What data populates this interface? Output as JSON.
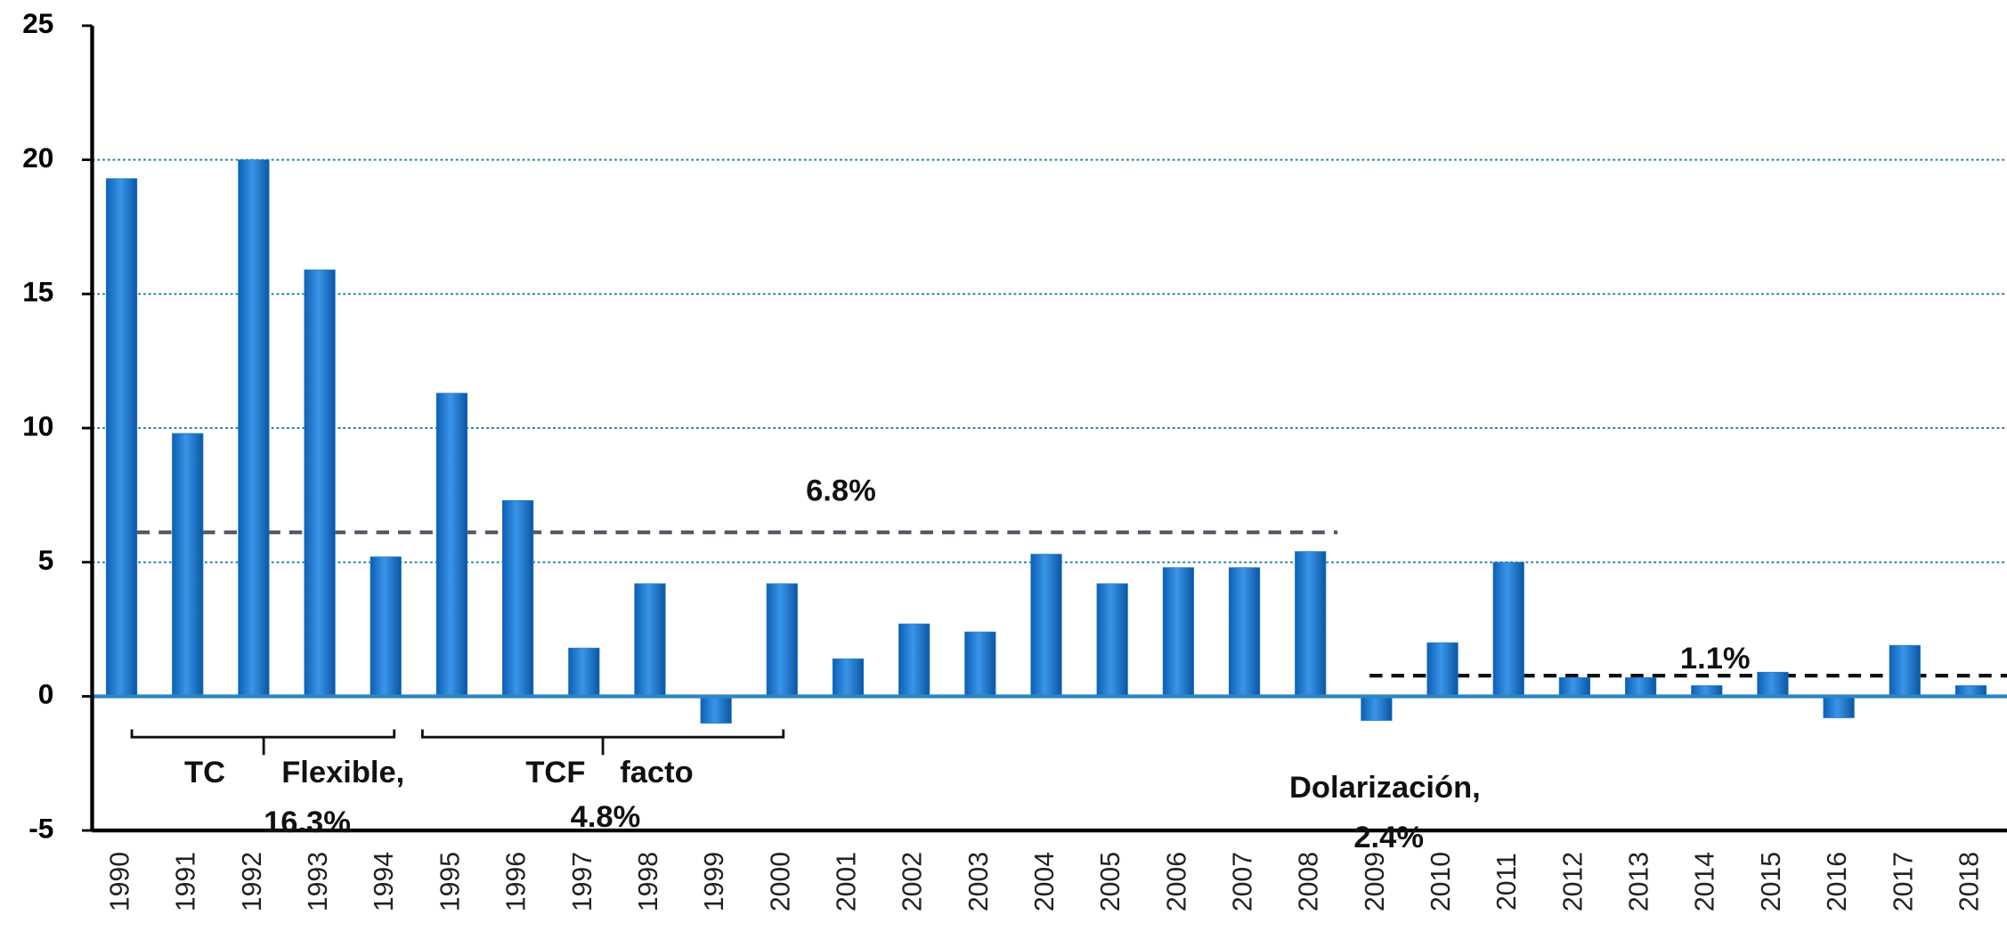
{
  "chart_data": {
    "type": "bar",
    "categories": [
      "1990",
      "1991",
      "1992",
      "1993",
      "1994",
      "1995",
      "1996",
      "1997",
      "1998",
      "1999",
      "2000",
      "2001",
      "2002",
      "2003",
      "2004",
      "2005",
      "2006",
      "2007",
      "2008",
      "2009",
      "2010",
      "2011",
      "2012",
      "2013",
      "2014",
      "2015",
      "2016",
      "2017",
      "2018"
    ],
    "values": [
      19.3,
      9.8,
      20,
      15.9,
      5.2,
      11.3,
      7.3,
      1.8,
      4.2,
      -1.0,
      4.2,
      1.4,
      2.7,
      2.4,
      5.3,
      4.2,
      4.8,
      4.8,
      5.4,
      -0.9,
      2.0,
      5.0,
      0.7,
      0.7,
      0.4,
      0.9,
      -0.8,
      1.9,
      0.4
    ],
    "color": "#1f78d1",
    "ylim": [
      -5,
      25
    ],
    "yticks": [
      -5,
      0,
      5,
      10,
      15,
      20,
      25
    ],
    "grid": true,
    "annotations": [
      "6.8%",
      "1.1%",
      "TC",
      "Flexible,",
      "16.3%",
      "TCF",
      "facto",
      "4.8%",
      "Dolarización,",
      "2.4%"
    ]
  }
}
